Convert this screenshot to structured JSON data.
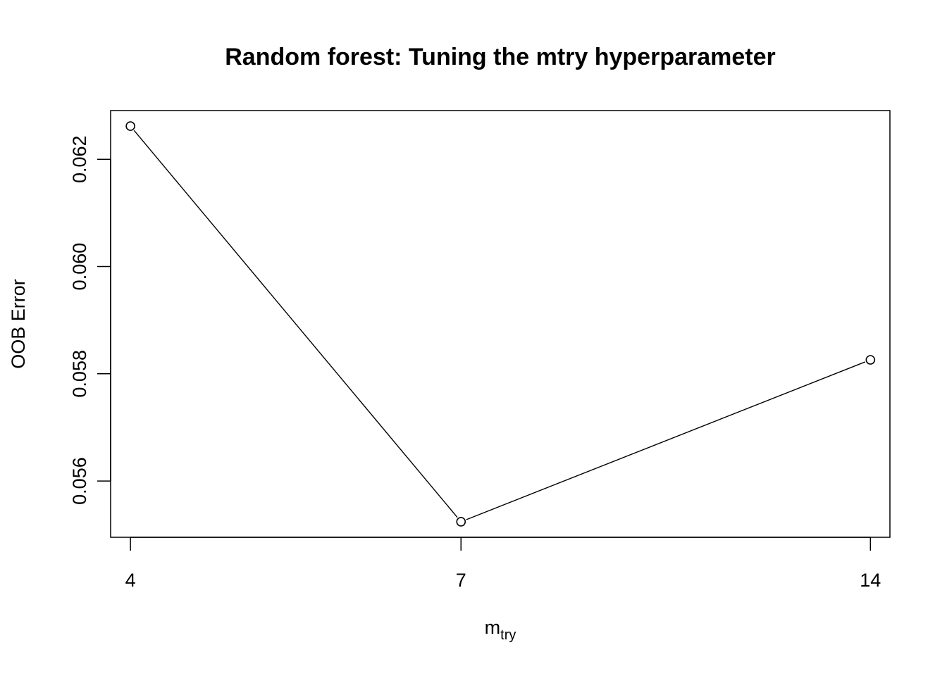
{
  "chart_data": {
    "type": "line",
    "title": "Random forest: Tuning the mtry hyperparameter",
    "xlabel": {
      "main": "m",
      "subscript": "try"
    },
    "ylabel": "OOB Error",
    "x": [
      4,
      7,
      14
    ],
    "x_scale": "log",
    "x_ticks": [
      4,
      7,
      14
    ],
    "x_tick_labels": [
      "4",
      "7",
      "14"
    ],
    "series": [
      {
        "values": [
          0.06262,
          0.05524,
          0.05826
        ]
      }
    ],
    "y_ticks": [
      0.056,
      0.058,
      0.06,
      0.062
    ],
    "y_tick_labels": [
      "0.056",
      "0.058",
      "0.060",
      "0.062"
    ],
    "ylim": [
      0.05495,
      0.06291
    ],
    "xlim": [
      3.868,
      14.47
    ],
    "grid": false,
    "legend": "none",
    "marker": "open-circle",
    "line_color": "#000000"
  }
}
